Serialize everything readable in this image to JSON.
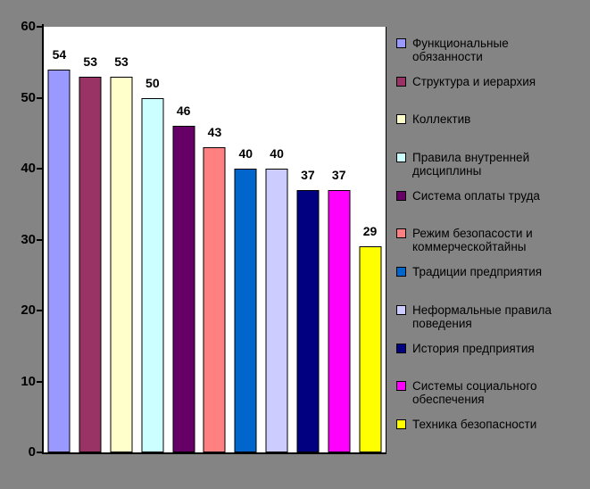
{
  "chart_data": {
    "type": "bar",
    "title": "",
    "xlabel": "",
    "ylabel": "",
    "categories": [
      "Функциональные обязанности",
      "Структура и иерархия",
      "Коллектив",
      "Правила внутренней дисциплины",
      "Система оплаты труда",
      "Режим безопасости и коммерческойтайны",
      "Традиции предприятия",
      "Неформальные правила поведения",
      "История предприятия",
      "Системы социального обеспечения",
      "Техника безопасности"
    ],
    "values": [
      54,
      53,
      53,
      50,
      46,
      43,
      40,
      40,
      37,
      37,
      29
    ],
    "bar_colors": [
      "#9999FF",
      "#993366",
      "#FFFFCC",
      "#CCFFFF",
      "#660066",
      "#FF8080",
      "#0066CC",
      "#CCCCFF",
      "#000080",
      "#FF00FF",
      "#FFFF00"
    ],
    "ylim": [
      0,
      60
    ],
    "yticks": [
      "0",
      "10",
      "20",
      "30",
      "40",
      "50",
      "60"
    ],
    "grid": false,
    "data_labels": true,
    "legend_position": "right",
    "background_color": "#848484",
    "plot_background_color": "#FFFFFF"
  }
}
